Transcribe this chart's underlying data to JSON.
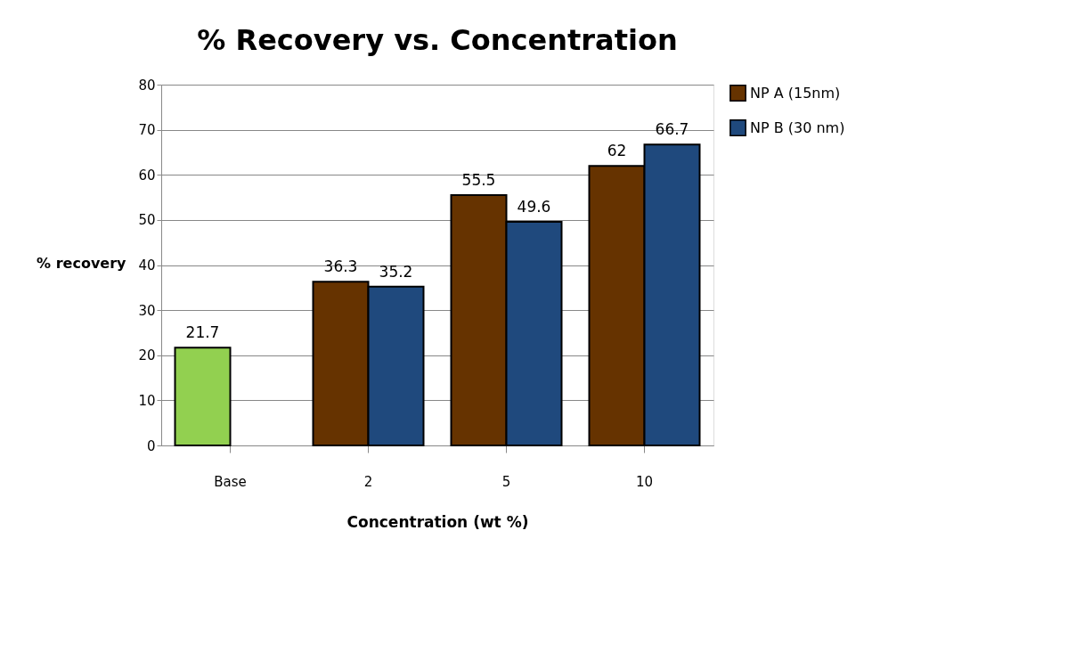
{
  "chart_data": {
    "type": "bar",
    "title": "% Recovery vs. Concentration",
    "xlabel": "Concentration (wt %)",
    "ylabel": "% recovery",
    "categories": [
      "Base",
      "2",
      "5",
      "10"
    ],
    "series": [
      {
        "name": "NP A (15nm)",
        "color": "#663300",
        "colors": [
          "#92d050",
          "#663300",
          "#663300",
          "#663300"
        ],
        "values": [
          21.7,
          36.3,
          55.5,
          62
        ]
      },
      {
        "name": "NP B (30 nm)",
        "color": "#1f497d",
        "values": [
          null,
          35.2,
          49.6,
          66.7
        ]
      }
    ],
    "ylim": [
      0,
      80
    ],
    "yticks": [
      0,
      10,
      20,
      30,
      40,
      50,
      60,
      70,
      80
    ],
    "grid": "y",
    "legend": "right",
    "data_labels": true
  }
}
